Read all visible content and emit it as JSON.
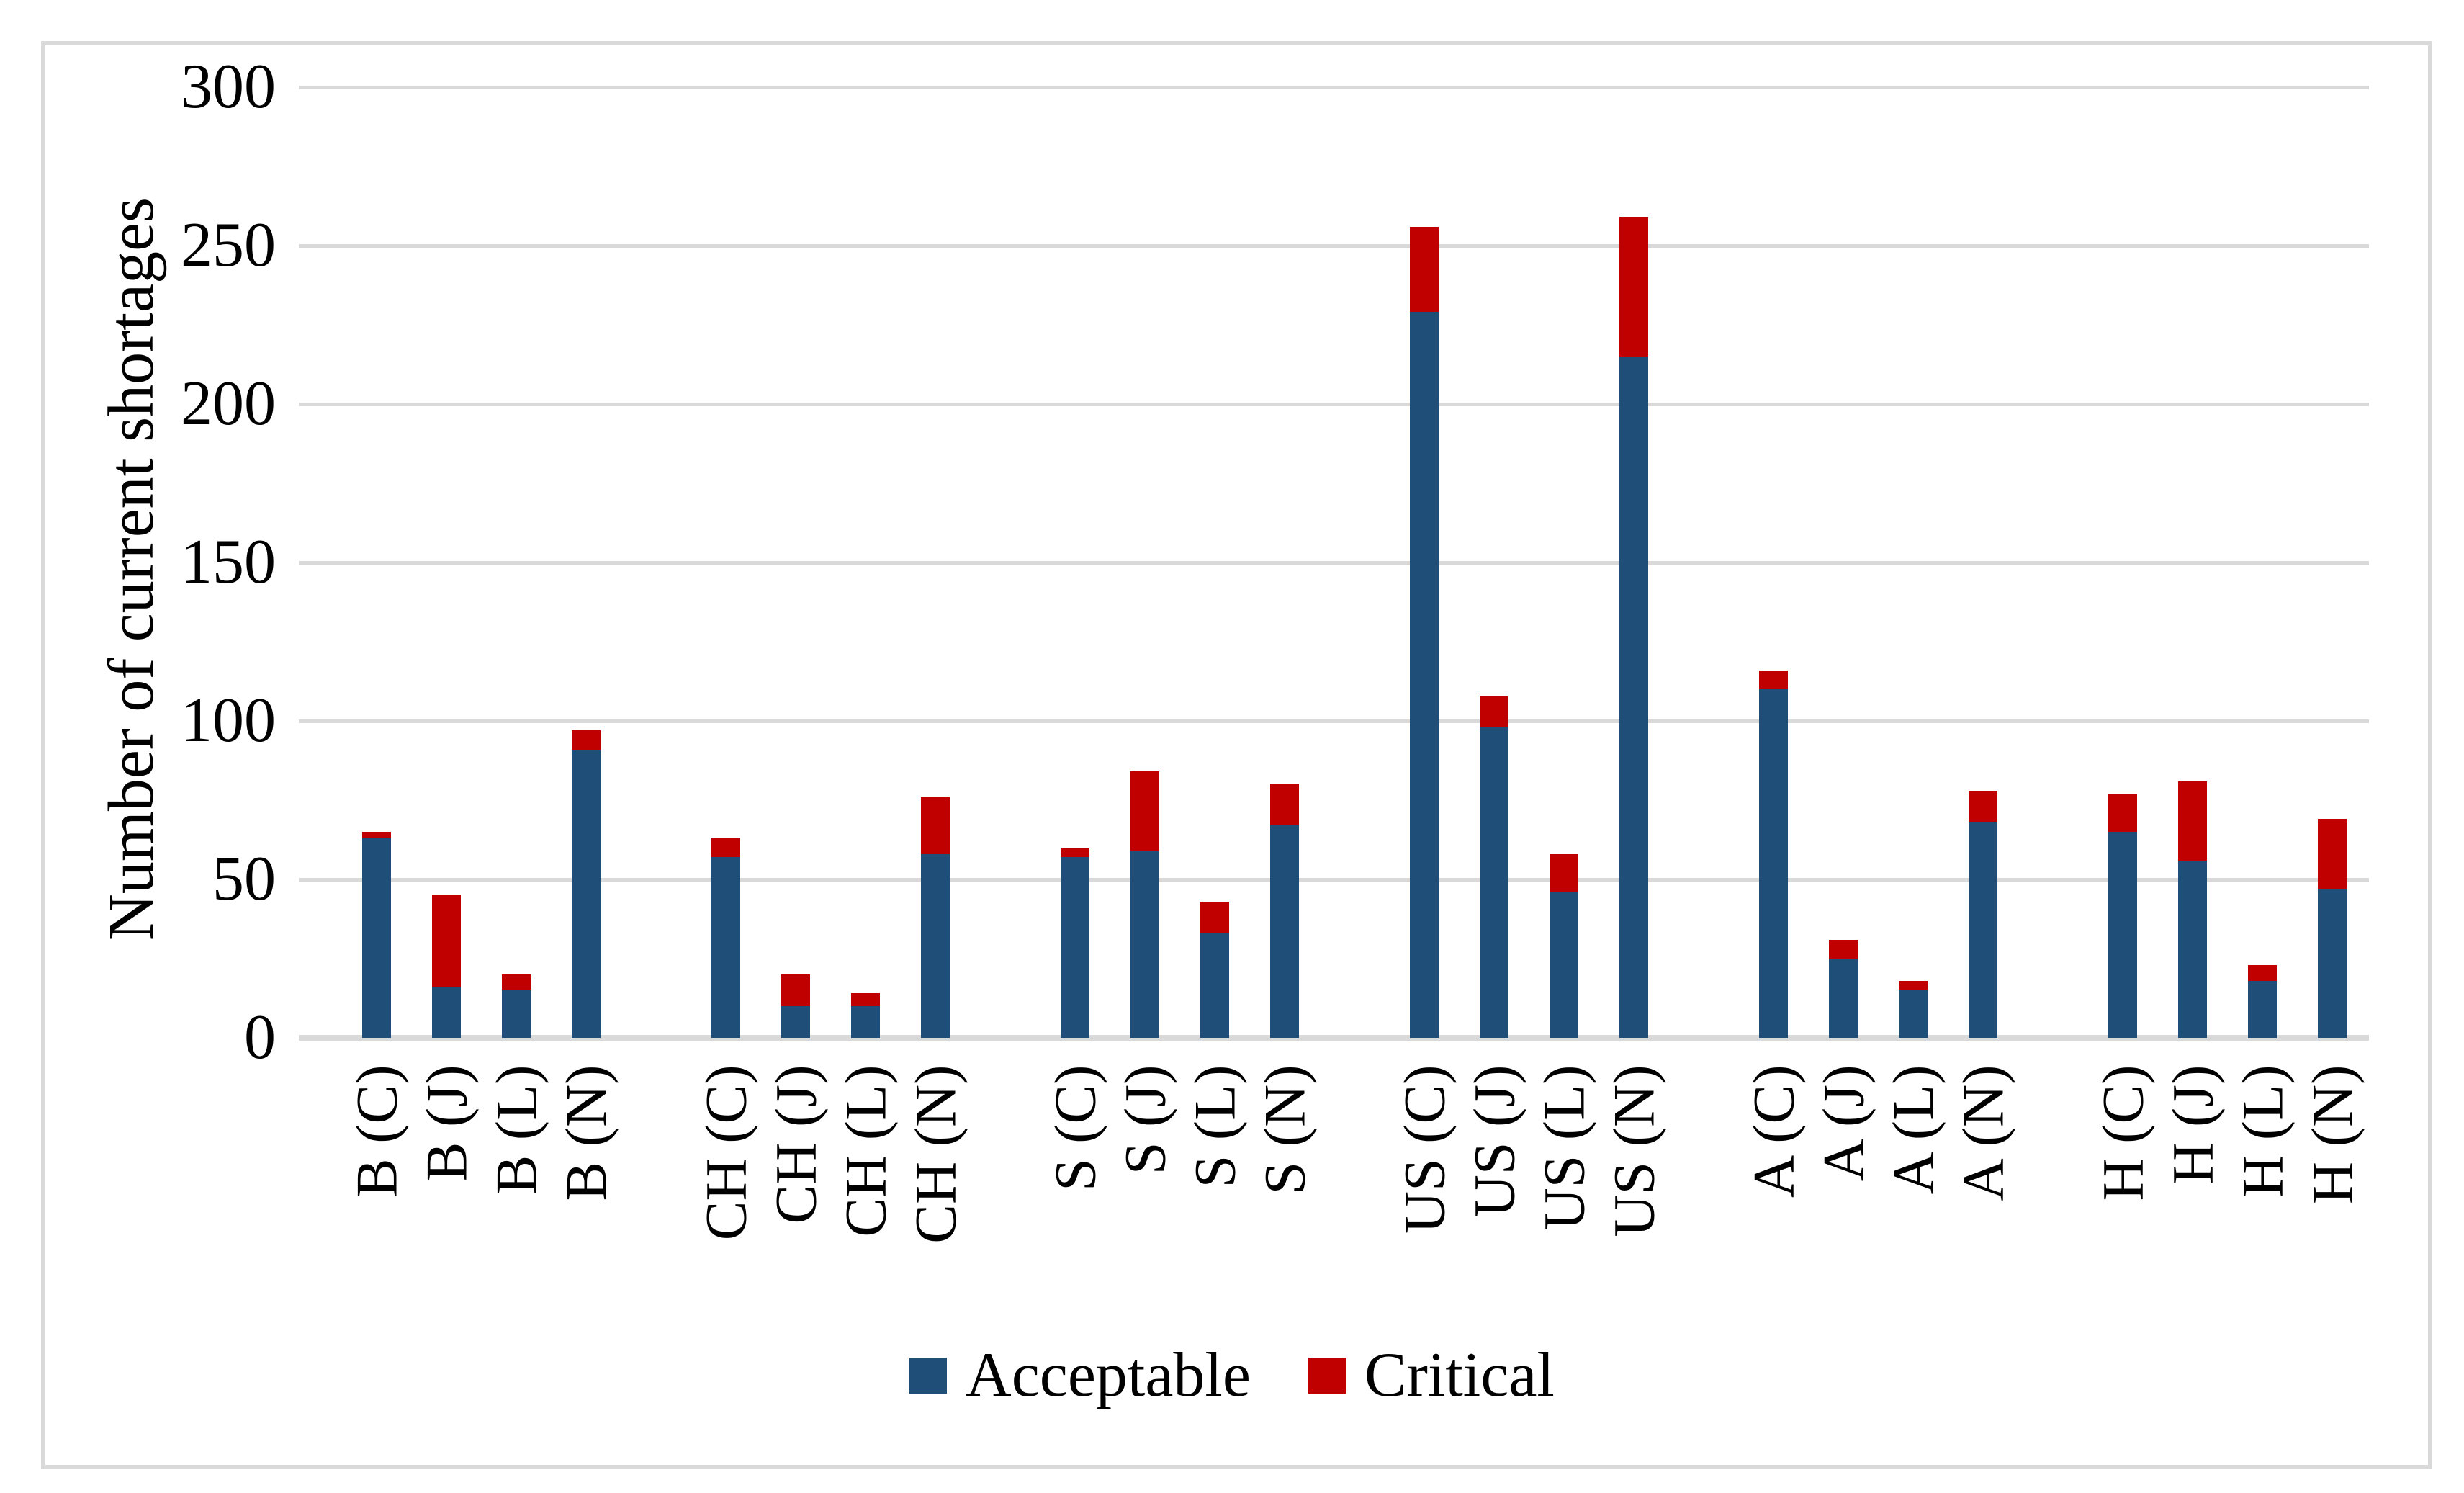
{
  "figure": {
    "border_color": "#D9D9D9",
    "gridline_color": "#D9D9D9",
    "background": "#ffffff"
  },
  "chart_data": {
    "type": "bar",
    "stacked": true,
    "title": "",
    "xlabel": "",
    "ylabel": "Number of current shortages",
    "ylim": [
      0,
      300
    ],
    "yticks": [
      0,
      50,
      100,
      150,
      200,
      250,
      300
    ],
    "grid": "horizontal",
    "legend_position": "bottom",
    "categories": [
      "B (C)",
      "B (J)",
      "B (L)",
      "B (N)",
      "CH (C)",
      "CH (J)",
      "CH (L)",
      "CH (N)",
      "S (C)",
      "S (J)",
      "S (L)",
      "S (N)",
      "US (C)",
      "US (J)",
      "US (L)",
      "US (N)",
      "A (C)",
      "A (J)",
      "A (L)",
      "A (N)",
      "H (C)",
      "H (J)",
      "H (L)",
      "H (N)"
    ],
    "group_size": 4,
    "series": [
      {
        "name": "Acceptable",
        "color": "#1F4E79",
        "values": [
          63,
          16,
          15,
          91,
          57,
          10,
          10,
          58,
          57,
          59,
          33,
          67,
          229,
          98,
          46,
          215,
          110,
          25,
          15,
          68,
          65,
          56,
          18,
          47
        ]
      },
      {
        "name": "Critical",
        "color": "#C00000",
        "values": [
          2,
          29,
          5,
          6,
          6,
          10,
          4,
          18,
          3,
          25,
          10,
          13,
          27,
          10,
          12,
          44,
          6,
          6,
          3,
          10,
          12,
          25,
          5,
          22
        ]
      }
    ]
  }
}
